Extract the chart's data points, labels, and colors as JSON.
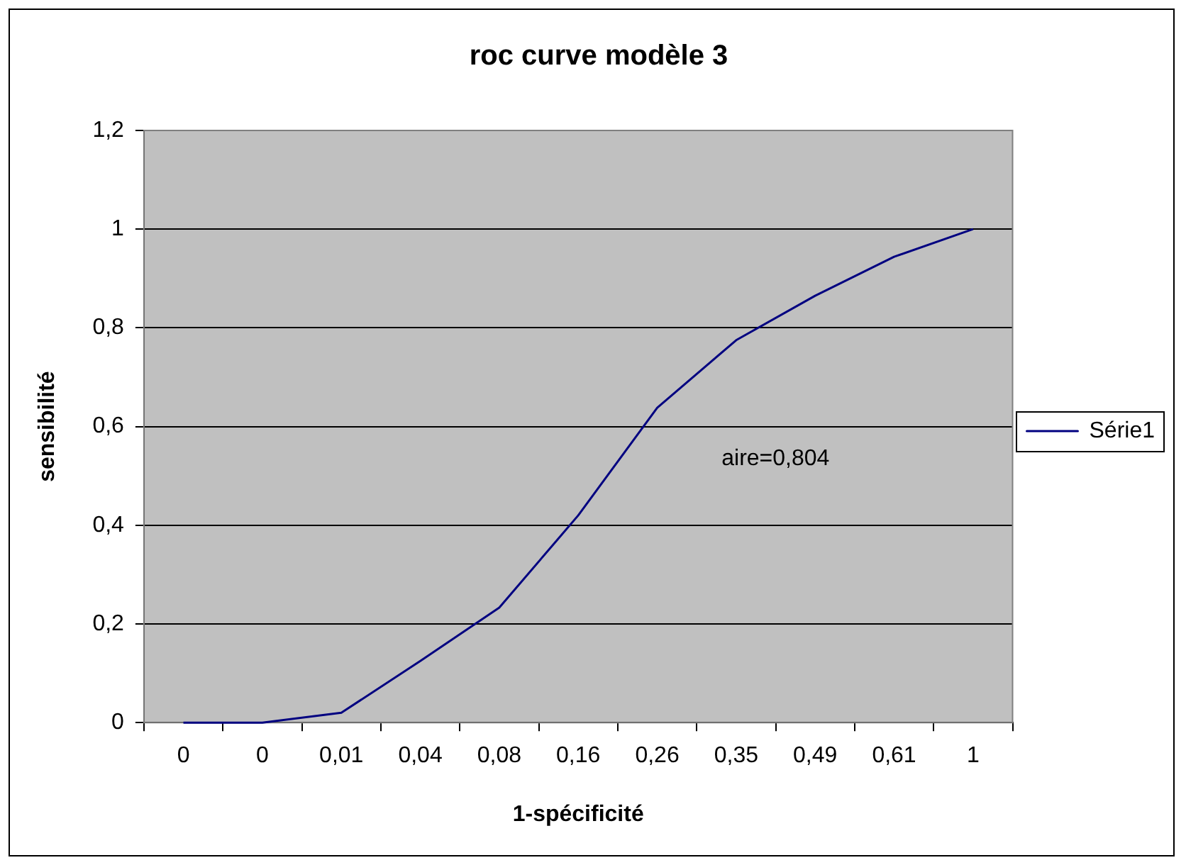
{
  "chart_data": {
    "type": "line",
    "title": "roc curve modèle 3",
    "xlabel": "1-spécificité",
    "ylabel": "sensibilité",
    "categories": [
      "0",
      "0",
      "0,01",
      "0,04",
      "0,08",
      "0,16",
      "0,26",
      "0,35",
      "0,49",
      "0,61",
      "1"
    ],
    "series": [
      {
        "name": "Série1",
        "color": "#000080",
        "values": [
          0,
          0,
          0.02,
          0.125,
          0.233,
          0.42,
          0.638,
          0.775,
          0.865,
          0.944,
          1
        ]
      }
    ],
    "ylim": [
      0,
      1.2
    ],
    "yticks": [
      {
        "value": 0,
        "label": "0"
      },
      {
        "value": 0.2,
        "label": "0,2"
      },
      {
        "value": 0.4,
        "label": "0,4"
      },
      {
        "value": 0.6,
        "label": "0,6"
      },
      {
        "value": 0.8,
        "label": "0,8"
      },
      {
        "value": 1,
        "label": "1"
      },
      {
        "value": 1.2,
        "label": "1,2"
      }
    ],
    "grid": "y",
    "legend": "right",
    "marker": "none",
    "line_style": "solid",
    "annotations": [
      "aire=0,804"
    ]
  }
}
